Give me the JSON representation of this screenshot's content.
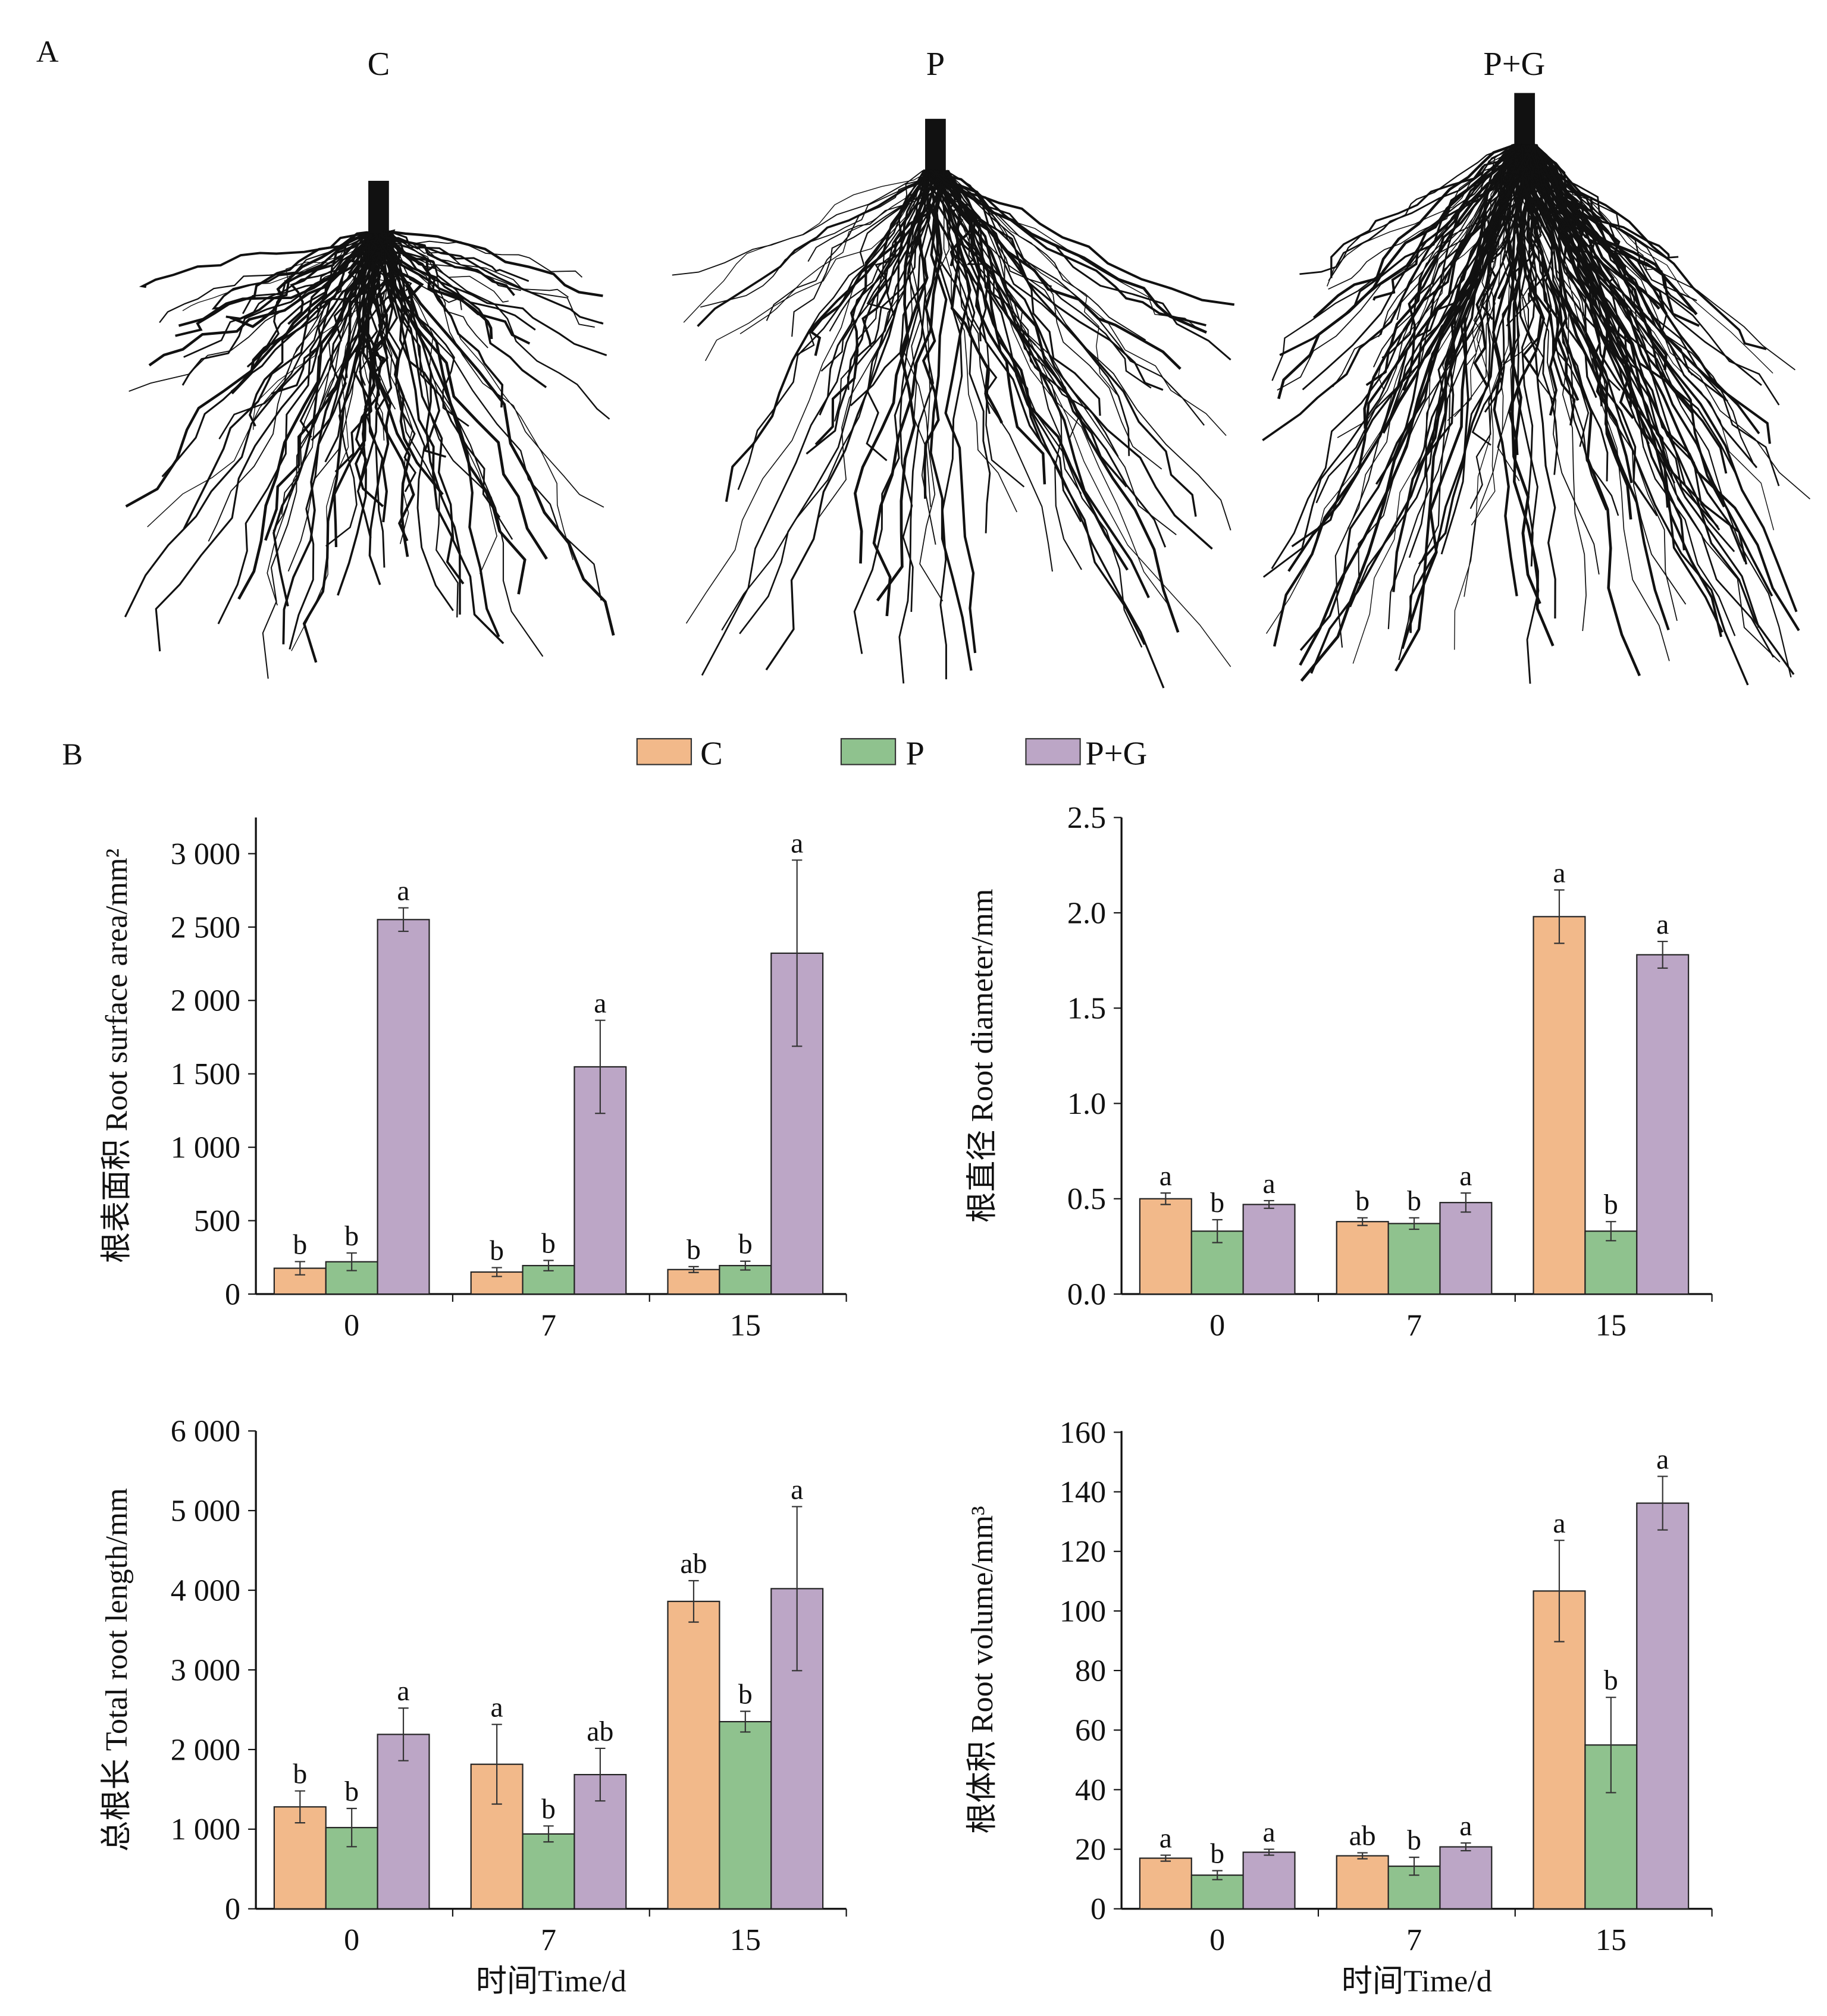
{
  "panel_a": {
    "label": "A",
    "titles": [
      "C",
      "P",
      "P+G"
    ]
  },
  "panel_b": {
    "label": "B"
  },
  "legend": [
    {
      "name": "C",
      "color": "#F2B98A"
    },
    {
      "name": "P",
      "color": "#8FC28E"
    },
    {
      "name": "P+G",
      "color": "#BCA6C6"
    }
  ],
  "chart_data": [
    {
      "type": "bar",
      "title": "",
      "ylabel": "根表面积 Root surface area/mm²",
      "xlabel": "",
      "categories": [
        "0",
        "7",
        "15"
      ],
      "ylim": [
        0,
        3000
      ],
      "yticks": [
        0,
        500,
        1000,
        1500,
        2000,
        2500,
        3000
      ],
      "ytick_labels": [
        "0",
        "500",
        "1 000",
        "1 500",
        "2 000",
        "2 500",
        "3 000"
      ],
      "series": [
        {
          "name": "C",
          "values": [
            176,
            150,
            167
          ],
          "errors": [
            45,
            30,
            20
          ],
          "letters": [
            "b",
            "b",
            "b"
          ]
        },
        {
          "name": "P",
          "values": [
            220,
            194,
            194
          ],
          "errors": [
            60,
            35,
            30
          ],
          "letters": [
            "b",
            "b",
            "b"
          ]
        },
        {
          "name": "P+G",
          "values": [
            2551,
            1548,
            2322
          ],
          "errors": [
            80,
            317,
            634
          ],
          "letters": [
            "a",
            "a",
            "a"
          ]
        }
      ]
    },
    {
      "type": "bar",
      "title": "",
      "ylabel": "根直径 Root diameter/mm",
      "xlabel": "",
      "categories": [
        "0",
        "7",
        "15"
      ],
      "ylim": [
        0,
        2.5
      ],
      "yticks": [
        0,
        0.5,
        1.0,
        1.5,
        2.0,
        2.5
      ],
      "ytick_labels": [
        "0.0",
        "0.5",
        "1.0",
        "1.5",
        "2.0",
        "2.5"
      ],
      "series": [
        {
          "name": "C",
          "values": [
            0.5,
            0.38,
            1.98
          ],
          "errors": [
            0.03,
            0.02,
            0.14
          ],
          "letters": [
            "a",
            "b",
            "a"
          ]
        },
        {
          "name": "P",
          "values": [
            0.33,
            0.37,
            0.33
          ],
          "errors": [
            0.06,
            0.03,
            0.05
          ],
          "letters": [
            "b",
            "b",
            "b"
          ]
        },
        {
          "name": "P+G",
          "values": [
            0.47,
            0.48,
            1.78
          ],
          "errors": [
            0.02,
            0.05,
            0.07
          ],
          "letters": [
            "a",
            "a",
            "a"
          ]
        }
      ]
    },
    {
      "type": "bar",
      "title": "",
      "ylabel": "总根长 Total root length/mm",
      "xlabel": "时间Time/d",
      "categories": [
        "0",
        "7",
        "15"
      ],
      "ylim": [
        0,
        6000
      ],
      "yticks": [
        0,
        1000,
        2000,
        3000,
        4000,
        5000,
        6000
      ],
      "ytick_labels": [
        "0",
        "1 000",
        "2 000",
        "3 000",
        "4 000",
        "5 000",
        "6 000"
      ],
      "series": [
        {
          "name": "C",
          "values": [
            1280,
            1815,
            3860
          ],
          "errors": [
            200,
            500,
            260
          ],
          "letters": [
            "b",
            "a",
            "ab"
          ]
        },
        {
          "name": "P",
          "values": [
            1020,
            940,
            2350
          ],
          "errors": [
            240,
            100,
            130
          ],
          "letters": [
            "b",
            "b",
            "b"
          ]
        },
        {
          "name": "P+G",
          "values": [
            2190,
            1685,
            4020
          ],
          "errors": [
            330,
            330,
            1030
          ],
          "letters": [
            "a",
            "ab",
            "a"
          ]
        }
      ]
    },
    {
      "type": "bar",
      "title": "",
      "ylabel": "根体积 Root volume/mm³",
      "xlabel": "时间Time/d",
      "categories": [
        "0",
        "7",
        "15"
      ],
      "ylim": [
        0,
        160
      ],
      "yticks": [
        0,
        20,
        40,
        60,
        80,
        100,
        120,
        140,
        160
      ],
      "ytick_labels": [
        "0",
        "20",
        "40",
        "60",
        "80",
        "100",
        "120",
        "140",
        "160"
      ],
      "series": [
        {
          "name": "C",
          "values": [
            17,
            17.8,
            106.7
          ],
          "errors": [
            1,
            1,
            17
          ],
          "letters": [
            "a",
            "ab",
            "a"
          ]
        },
        {
          "name": "P",
          "values": [
            11.3,
            14.3,
            55
          ],
          "errors": [
            1.5,
            3,
            16
          ],
          "letters": [
            "b",
            "b",
            "b"
          ]
        },
        {
          "name": "P+G",
          "values": [
            19,
            20.8,
            136.2
          ],
          "errors": [
            1,
            1.3,
            9
          ],
          "letters": [
            "a",
            "a",
            "a"
          ]
        }
      ]
    }
  ]
}
